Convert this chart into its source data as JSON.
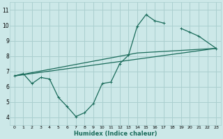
{
  "xlabel": "Humidex (Indice chaleur)",
  "bg_color": "#cce8e8",
  "grid_color": "#aacfcf",
  "line_color": "#1a6b5a",
  "xlim": [
    -0.5,
    23.5
  ],
  "ylim": [
    3.5,
    11.5
  ],
  "xticks": [
    0,
    1,
    2,
    3,
    4,
    5,
    6,
    7,
    8,
    9,
    10,
    11,
    12,
    13,
    14,
    15,
    16,
    17,
    18,
    19,
    20,
    21,
    22,
    23
  ],
  "yticks": [
    4,
    5,
    6,
    7,
    8,
    9,
    10,
    11
  ],
  "main_x": [
    0,
    1,
    2,
    3,
    4,
    5,
    6,
    7,
    8,
    9,
    10,
    11,
    12,
    13,
    14,
    15,
    16,
    17,
    19,
    20,
    21,
    23
  ],
  "main_y": [
    6.7,
    6.85,
    6.2,
    6.6,
    6.5,
    5.3,
    4.7,
    4.05,
    4.3,
    4.9,
    6.2,
    6.3,
    7.5,
    8.05,
    9.95,
    10.7,
    10.3,
    10.15,
    9.8,
    9.55,
    9.3,
    8.5
  ],
  "line1_x": [
    0,
    23
  ],
  "line1_y": [
    6.7,
    8.5
  ],
  "line2_x": [
    0,
    14,
    23
  ],
  "line2_y": [
    6.7,
    8.2,
    8.5
  ],
  "marker_x": [
    0,
    1,
    2,
    3,
    4,
    5,
    6,
    7,
    8,
    9,
    10,
    11,
    12,
    13,
    14,
    15,
    16,
    17,
    19,
    20,
    21,
    23
  ],
  "marker_y": [
    6.7,
    6.85,
    6.2,
    6.6,
    6.5,
    5.3,
    4.7,
    4.05,
    4.3,
    4.9,
    6.2,
    6.3,
    7.5,
    8.05,
    9.95,
    10.7,
    10.3,
    10.15,
    9.8,
    9.55,
    9.3,
    8.5
  ]
}
